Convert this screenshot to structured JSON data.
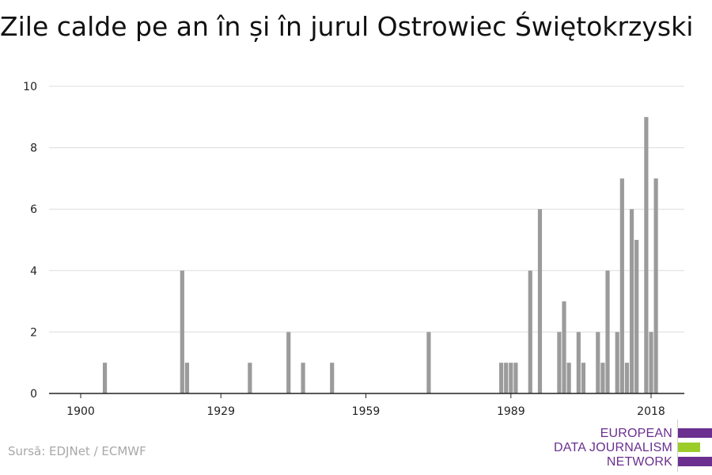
{
  "title": "Zile calde pe an în și în jurul Ostrowiec Świętokrzyski",
  "source": "Sursă: EDJNet / ECMWF",
  "logo": {
    "lines": [
      "EUROPEAN",
      "DATA JOURNALISM",
      "NETWORK"
    ],
    "colors": {
      "purple": "#6a2f8f",
      "green": "#9ccc2a"
    }
  },
  "chart_data": {
    "type": "bar",
    "title": "Zile calde pe an în și în jurul Ostrowiec Świętokrzyski",
    "xlabel": "",
    "ylabel": "",
    "xlim": [
      1900,
      2018
    ],
    "ylim": [
      0,
      10
    ],
    "x_ticks": [
      1900,
      1929,
      1959,
      1989,
      2018
    ],
    "y_ticks": [
      0,
      2,
      4,
      6,
      8,
      10
    ],
    "grid": true,
    "bar_color": "#9b9b9b",
    "series": [
      {
        "x": [
          1905,
          1921,
          1922,
          1935,
          1943,
          1946,
          1952,
          1972,
          1987,
          1988,
          1989,
          1990,
          1993,
          1995,
          1999,
          2000,
          2001,
          2003,
          2004,
          2007,
          2008,
          2009,
          2011,
          2012,
          2013,
          2014,
          2015,
          2017,
          2018,
          2019
        ],
        "values": [
          1,
          4,
          1,
          1,
          2,
          1,
          1,
          2,
          1,
          1,
          1,
          1,
          4,
          6,
          2,
          3,
          1,
          2,
          1,
          2,
          1,
          4,
          2,
          7,
          1,
          6,
          5,
          9,
          2,
          7
        ]
      }
    ]
  }
}
